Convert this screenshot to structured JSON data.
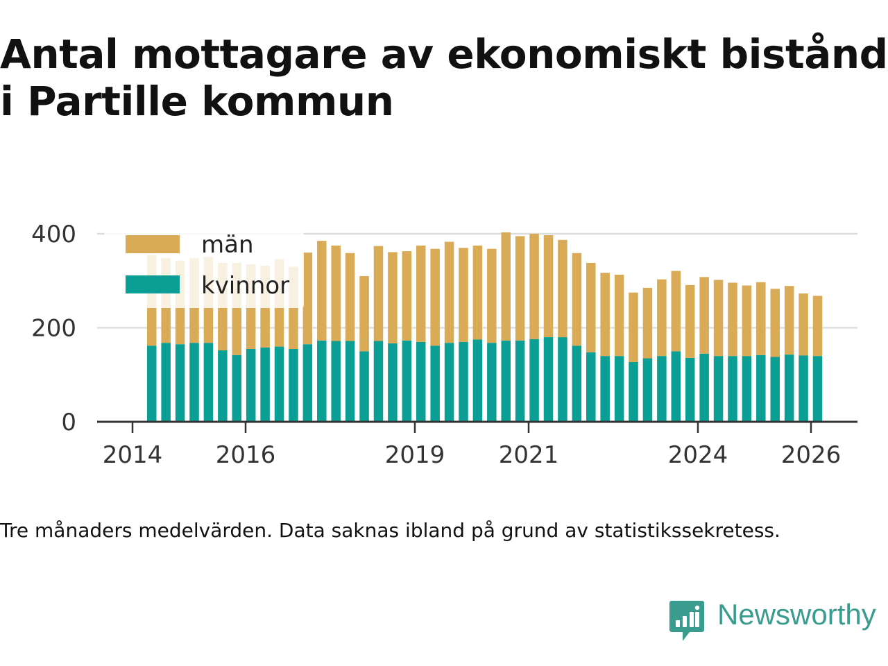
{
  "chart_data": {
    "type": "bar",
    "stacked": true,
    "title": "Antal mottagare av ekonomiskt bistånd i Partille kommun",
    "note": "Tre månaders medelvärden. Data saknas ibland på grund av statistikssekretess.",
    "ylim": [
      0,
      400
    ],
    "yticks": [
      0,
      200,
      400
    ],
    "xticks": [
      "2014",
      "2016",
      "2019",
      "2021",
      "2024",
      "2026"
    ],
    "legend_position": "top-left",
    "colors": {
      "män": "#d9ab57",
      "kvinnor": "#0a9e95"
    },
    "series": [
      {
        "name": "män",
        "values": [
          193,
          180,
          178,
          180,
          183,
          186,
          196,
          180,
          174,
          186,
          175,
          195,
          212,
          203,
          187,
          160,
          202,
          194,
          190,
          205,
          206,
          215,
          200,
          200,
          200,
          230,
          222,
          224,
          217,
          207,
          197,
          190,
          177,
          173,
          148,
          150,
          163,
          171,
          155,
          163,
          162,
          156,
          150,
          155,
          145,
          146,
          132,
          128
        ]
      },
      {
        "name": "kvinnor",
        "values": [
          162,
          168,
          165,
          168,
          168,
          152,
          142,
          155,
          158,
          160,
          155,
          165,
          173,
          172,
          172,
          150,
          172,
          167,
          173,
          170,
          162,
          168,
          170,
          175,
          168,
          173,
          173,
          176,
          180,
          180,
          162,
          148,
          140,
          140,
          127,
          135,
          140,
          150,
          136,
          145,
          140,
          140,
          140,
          142,
          138,
          143,
          141,
          140
        ]
      }
    ]
  },
  "brand": {
    "name": "Newsworthy"
  }
}
